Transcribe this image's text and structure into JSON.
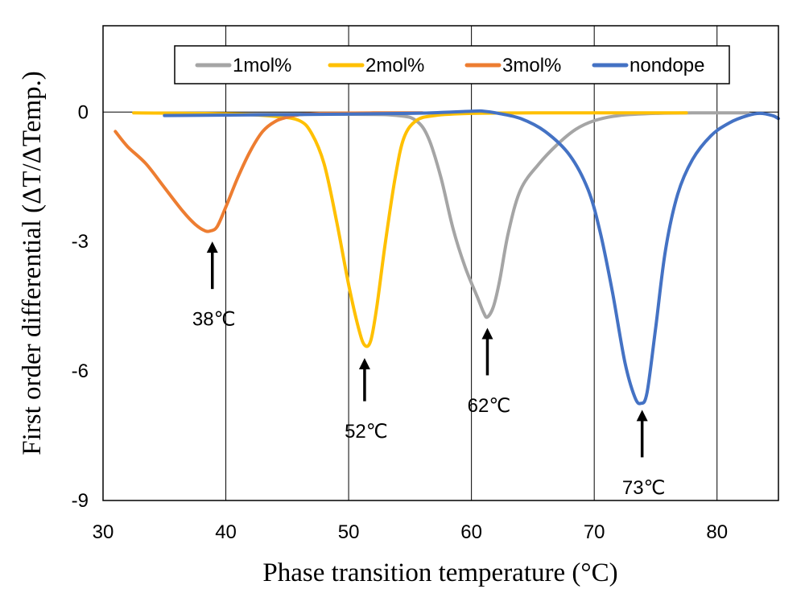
{
  "chart_data": {
    "type": "line",
    "xlabel": "Phase transition temperature (°C)",
    "ylabel": "First order differential  (ΔT/ΔTemp.)",
    "xlim": [
      30,
      85
    ],
    "ylim": [
      -9,
      2.0
    ],
    "xticks": [
      30,
      40,
      50,
      60,
      70,
      80
    ],
    "yticks": [
      -9,
      -6,
      -3,
      0
    ],
    "x_tick_labels": [
      "30",
      "40",
      "50",
      "60",
      "70",
      "80"
    ],
    "y_tick_labels": [
      "-9",
      "-6",
      "-3",
      "0"
    ],
    "grid": "vertical",
    "legend_position": "top",
    "series": [
      {
        "name": "1mol%",
        "color": "#A5A5A5",
        "x": [
          35,
          50,
          54,
          55.5,
          56.5,
          57.5,
          58.5,
          59.5,
          60.5,
          61.0,
          61.3,
          61.8,
          62.3,
          63.0,
          64.0,
          65.5,
          67,
          68.5,
          70,
          72,
          75,
          78,
          82.5
        ],
        "y": [
          -0.05,
          -0.05,
          -0.08,
          -0.2,
          -0.6,
          -1.5,
          -2.7,
          -3.6,
          -4.3,
          -4.65,
          -4.75,
          -4.5,
          -3.9,
          -2.8,
          -1.8,
          -1.2,
          -0.75,
          -0.4,
          -0.2,
          -0.08,
          -0.03,
          -0.02,
          -0.02
        ]
      },
      {
        "name": "2mol%",
        "color": "#FFC000",
        "x": [
          32.5,
          40,
          44,
          46,
          47,
          48,
          49,
          50,
          50.8,
          51.3,
          51.8,
          52.3,
          53.0,
          53.8,
          54.5,
          55.5,
          57,
          60,
          65,
          70,
          77.5
        ],
        "y": [
          -0.02,
          -0.04,
          -0.1,
          -0.2,
          -0.5,
          -1.2,
          -2.5,
          -4.0,
          -5.0,
          -5.4,
          -5.3,
          -4.5,
          -3.0,
          -1.5,
          -0.6,
          -0.2,
          -0.08,
          -0.03,
          -0.02,
          -0.02,
          -0.02
        ]
      },
      {
        "name": "3mol%",
        "color": "#ED7D31",
        "x": [
          31,
          32,
          33.5,
          35,
          36.5,
          37.5,
          38.3,
          38.8,
          39.3,
          40.0,
          41.0,
          42.0,
          43.0,
          44.0,
          45.0,
          46.0,
          48,
          52,
          56
        ],
        "y": [
          -0.45,
          -0.8,
          -1.2,
          -1.75,
          -2.3,
          -2.6,
          -2.75,
          -2.75,
          -2.65,
          -2.2,
          -1.5,
          -0.9,
          -0.45,
          -0.22,
          -0.12,
          -0.06,
          -0.03,
          -0.02,
          -0.02
        ]
      },
      {
        "name": "nondope",
        "color": "#4472C4",
        "x": [
          35,
          45,
          55,
          60,
          61,
          62,
          64,
          66,
          68,
          69.5,
          70.5,
          71.5,
          72.5,
          73.3,
          73.8,
          74.3,
          75.0,
          75.8,
          76.8,
          78,
          79.5,
          81,
          82.5,
          83.5,
          84.5,
          85
        ],
        "y": [
          -0.08,
          -0.06,
          -0.03,
          0.02,
          0.02,
          -0.02,
          -0.15,
          -0.45,
          -1.0,
          -1.8,
          -2.8,
          -4.2,
          -5.8,
          -6.6,
          -6.75,
          -6.5,
          -5.0,
          -3.2,
          -1.9,
          -1.1,
          -0.55,
          -0.25,
          -0.08,
          -0.03,
          -0.08,
          -0.15
        ]
      }
    ],
    "annotations": [
      {
        "text": "38℃",
        "x": 38.9,
        "y_tip": -3.0,
        "y_tail": -4.1,
        "label_y": -4.8
      },
      {
        "text": "52℃",
        "x": 51.3,
        "y_tip": -5.7,
        "y_tail": -6.7,
        "label_y": -7.4
      },
      {
        "text": "62℃",
        "x": 61.3,
        "y_tip": -5.0,
        "y_tail": -6.1,
        "label_y": -6.8
      },
      {
        "text": "73℃",
        "x": 73.9,
        "y_tip": -6.9,
        "y_tail": -8.0,
        "label_y": -8.7
      }
    ]
  }
}
